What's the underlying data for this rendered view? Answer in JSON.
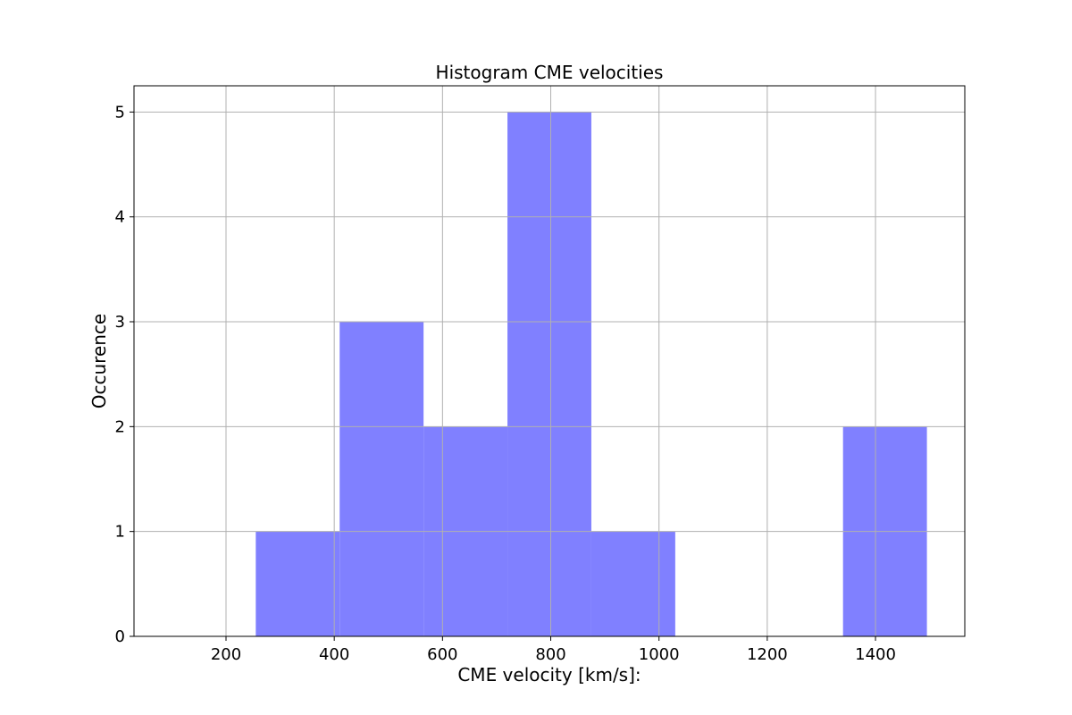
{
  "chart_data": {
    "type": "bar",
    "title": "Histogram CME velocities",
    "xlabel": "CME velocity [km/s]:",
    "ylabel": "Occurence",
    "bar_color": "#8080ff",
    "grid": true,
    "xlim": [
      30,
      1565
    ],
    "ylim": [
      0,
      5.25
    ],
    "xticks": [
      200,
      400,
      600,
      800,
      1000,
      1200,
      1400
    ],
    "yticks": [
      0,
      1,
      2,
      3,
      4,
      5
    ],
    "bins": [
      {
        "start": 255,
        "end": 410,
        "count": 1
      },
      {
        "start": 410,
        "end": 565,
        "count": 3
      },
      {
        "start": 565,
        "end": 720,
        "count": 2
      },
      {
        "start": 720,
        "end": 875,
        "count": 5
      },
      {
        "start": 875,
        "end": 1030,
        "count": 1
      },
      {
        "start": 1030,
        "end": 1185,
        "count": 0
      },
      {
        "start": 1185,
        "end": 1340,
        "count": 0
      },
      {
        "start": 1340,
        "end": 1495,
        "count": 2
      }
    ]
  }
}
